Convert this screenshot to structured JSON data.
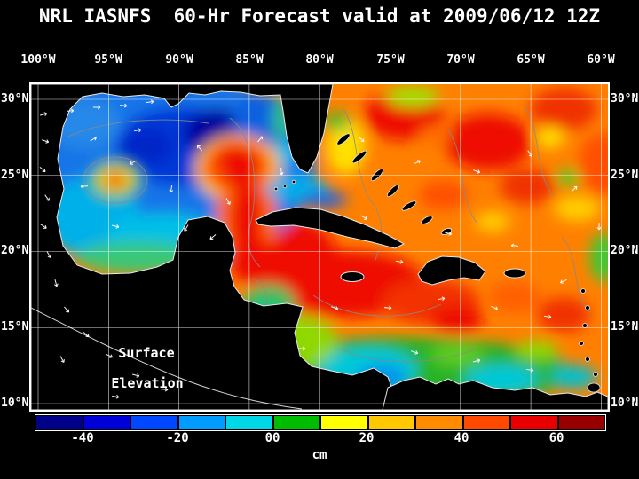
{
  "title": "NRL IASNFS  60-Hr Forecast valid at 2009/06/12 12Z",
  "axes": {
    "lon_ticks": [
      "100°W",
      "95°W",
      "90°W",
      "85°W",
      "80°W",
      "75°W",
      "70°W",
      "65°W",
      "60°W"
    ],
    "lat_ticks": [
      "30°N",
      "25°N",
      "20°N",
      "15°N",
      "10°N"
    ]
  },
  "map": {
    "annotation": {
      "line1": "Surface",
      "line2": "Elevation"
    }
  },
  "colorbar": {
    "ticks": [
      "-40",
      "-20",
      "00",
      "20",
      "40",
      "60"
    ],
    "unit": "cm",
    "colors": [
      "#000088",
      "#0000d8",
      "#0048ff",
      "#009cff",
      "#00d8e8",
      "#00bc00",
      "#ffff00",
      "#ffc800",
      "#ff8c00",
      "#ff4800",
      "#e80000",
      "#980000"
    ]
  },
  "chart_data": {
    "type": "heatmap",
    "title": "NRL IASNFS 60-Hr Forecast valid at 2009/06/12 12Z",
    "model": "NRL IASNFS",
    "forecast_hours": 60,
    "valid_time": "2009/06/12 12Z",
    "variable": "Surface Elevation",
    "units": "cm",
    "colorbar_tick_values": [
      -40,
      -20,
      0,
      20,
      40,
      60
    ],
    "value_range_cm": [
      -50,
      70
    ],
    "x_axis": {
      "label": "longitude",
      "ticks_deg_west": [
        100,
        95,
        90,
        85,
        80,
        75,
        70,
        65,
        60
      ]
    },
    "y_axis": {
      "label": "latitude",
      "ticks_deg_north": [
        30,
        25,
        20,
        15,
        10
      ]
    },
    "region": "Gulf of Mexico, Caribbean Sea and western Atlantic",
    "overlays": [
      "white current vector arrows",
      "gray contour lines",
      "white 5-degree grid",
      "black land mask with white coastlines"
    ],
    "features": [
      {
        "area": "Gulf of Mexico interior",
        "approx_value_cm": "-40 to -10 (blue), darkest minima near 92W 27N"
      },
      {
        "area": "warm eddy near 95W 25N",
        "approx_value_cm": "+40 (small red core ringed by yellow/green)"
      },
      {
        "area": "Loop Current through Yucatan Channel",
        "approx_value_cm": "+30 to +50 (red tongue into eastern Gulf)"
      },
      {
        "area": "Atlantic east of Florida / Bahamas",
        "approx_value_cm": "+10 to +50 (orange/red with yellow-green mottling)"
      },
      {
        "area": "central Caribbean south of Cuba/Hispaniola",
        "approx_value_cm": "+30 to +50 (red/orange)"
      },
      {
        "area": "southwestern Caribbean off Colombia/Panama",
        "approx_value_cm": "-20 to +10 (green/cyan/blue patch)"
      }
    ]
  }
}
